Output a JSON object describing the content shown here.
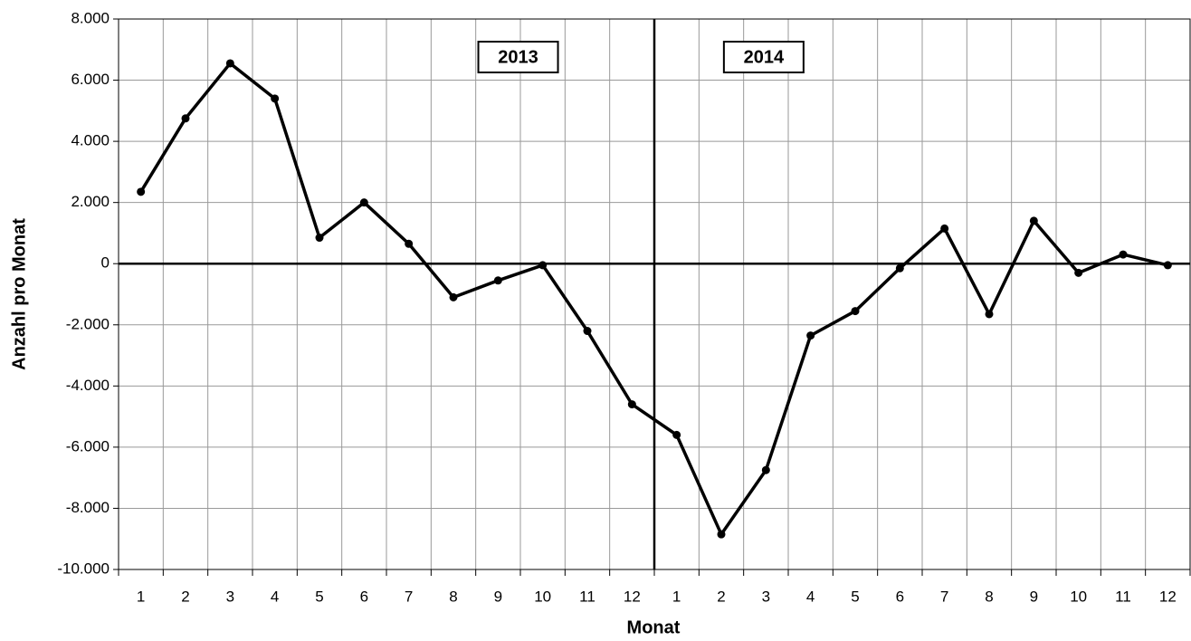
{
  "chart_data": {
    "type": "line",
    "x_label": "Monat",
    "y_label": "Anzahl pro Monat",
    "annotations": [
      "2013",
      "2014"
    ],
    "categories": [
      "1",
      "2",
      "3",
      "4",
      "5",
      "6",
      "7",
      "8",
      "9",
      "10",
      "11",
      "12",
      "1",
      "2",
      "3",
      "4",
      "5",
      "6",
      "7",
      "8",
      "9",
      "10",
      "11",
      "12"
    ],
    "series": [
      {
        "name": "Anzahl",
        "color": "#000000",
        "values": [
          2350,
          4750,
          6550,
          5400,
          850,
          2000,
          650,
          -1100,
          -550,
          -50,
          -2200,
          -4600,
          -5600,
          -8850,
          -6750,
          -2350,
          -1550,
          -150,
          1150,
          -1650,
          1400,
          -300,
          300,
          -50
        ]
      }
    ],
    "ylim": [
      -10000,
      8000
    ],
    "yticks": [
      {
        "value": -10000,
        "label": "-10.000"
      },
      {
        "value": -8000,
        "label": "-8.000"
      },
      {
        "value": -6000,
        "label": "-6.000"
      },
      {
        "value": -4000,
        "label": "-4.000"
      },
      {
        "value": -2000,
        "label": "-2.000"
      },
      0,
      {
        "value": 2000,
        "label": "2.000"
      },
      {
        "value": 4000,
        "label": "4.000"
      },
      {
        "value": 6000,
        "label": "6.000"
      },
      {
        "value": 8000,
        "label": "8.000"
      }
    ],
    "grid": true
  }
}
